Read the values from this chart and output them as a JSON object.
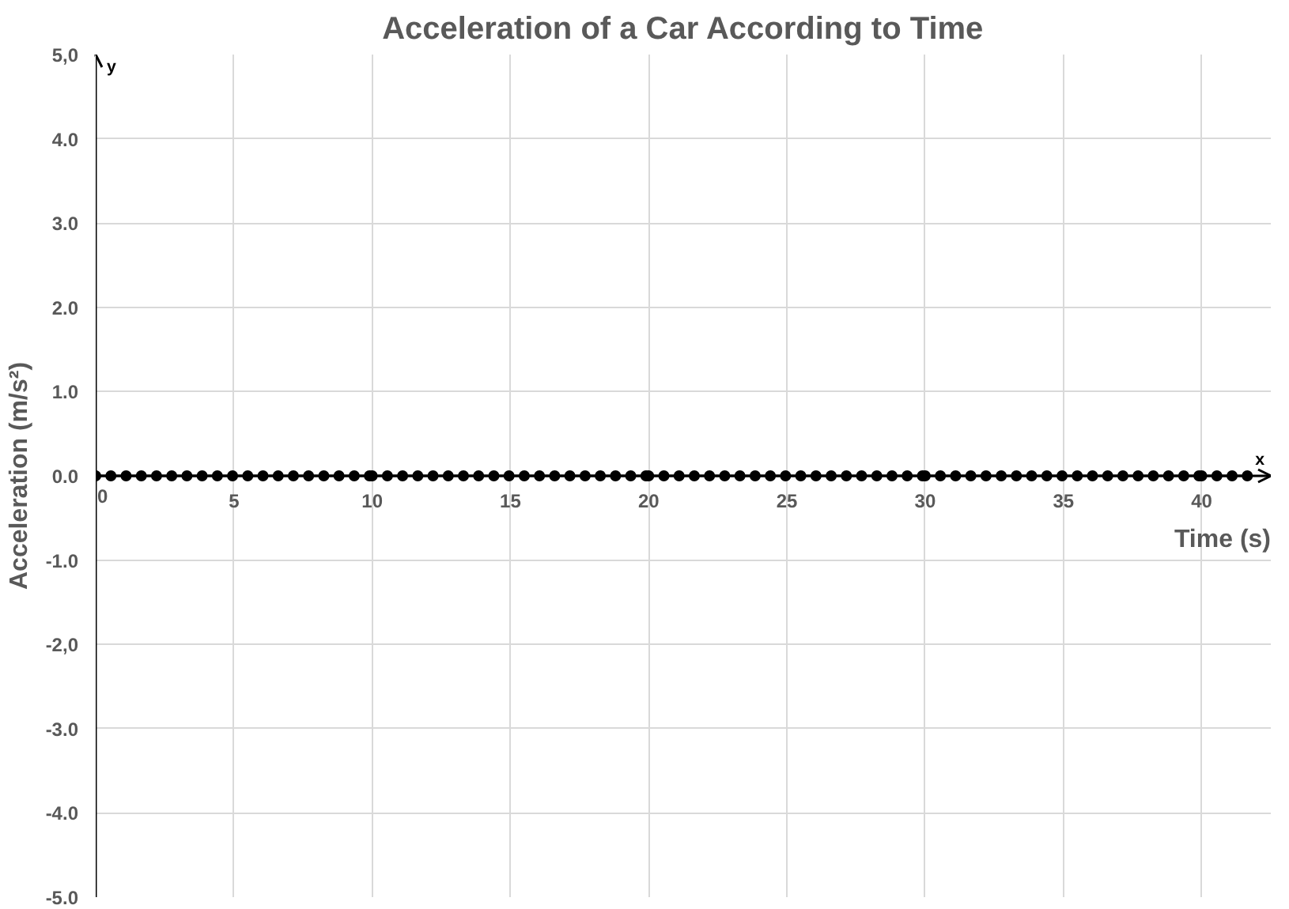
{
  "chart_data": {
    "type": "line",
    "title": "Acceleration of a Car According to Time",
    "xlabel": "Time (s)",
    "ylabel": "Acceleration (m/s²)",
    "annotations": [
      "y",
      "x"
    ],
    "series": [
      {
        "color": "#000000",
        "x": [
          0,
          0.55,
          1.1,
          1.65,
          2.2,
          2.75,
          3.3,
          3.85,
          4.4,
          4.95,
          5.5,
          6.05,
          6.6,
          7.15,
          7.7,
          8.25,
          8.8,
          9.35,
          9.9,
          10,
          10.55,
          11.1,
          11.65,
          12.2,
          12.75,
          13.3,
          13.85,
          14.4,
          14.95,
          15.5,
          16.05,
          16.6,
          17.15,
          17.7,
          18.25,
          18.8,
          19.35,
          19.9,
          20,
          20.55,
          21.1,
          21.65,
          22.2,
          22.75,
          23.3,
          23.85,
          24.4,
          24.95,
          25.5,
          26.05,
          26.6,
          27.15,
          27.7,
          28.25,
          28.8,
          29.35,
          29.9,
          30,
          30.55,
          31.1,
          31.65,
          32.2,
          32.75,
          33.3,
          33.85,
          34.4,
          34.95,
          35.5,
          36.05,
          36.6,
          37.15,
          37.7,
          38.25,
          38.8,
          39.35,
          39.9,
          40,
          40.55,
          41.1,
          41.65
        ],
        "values": [
          0,
          0,
          0,
          0,
          0,
          0,
          0,
          0,
          0,
          0,
          0,
          0,
          0,
          0,
          0,
          0,
          0,
          0,
          0,
          0,
          0,
          0,
          0,
          0,
          0,
          0,
          0,
          0,
          0,
          0,
          0,
          0,
          0,
          0,
          0,
          0,
          0,
          0,
          0,
          0,
          0,
          0,
          0,
          0,
          0,
          0,
          0,
          0,
          0,
          0,
          0,
          0,
          0,
          0,
          0,
          0,
          0,
          0,
          0,
          0,
          0,
          0,
          0,
          0,
          0,
          0,
          0,
          0,
          0,
          0,
          0,
          0,
          0,
          0,
          0,
          0,
          0,
          0,
          0,
          0
        ]
      }
    ],
    "marker": "circle",
    "line_style": "solid",
    "grid": true,
    "xlim": [
      0,
      42.5
    ],
    "xticks": [
      0,
      5,
      10,
      15,
      20,
      25,
      30,
      35,
      40
    ],
    "ylim": [
      -5,
      5
    ],
    "yticks": [
      {
        "value": 5,
        "label": "5,0"
      },
      {
        "value": 4,
        "label": "4.0"
      },
      {
        "value": 3,
        "label": "3.0"
      },
      {
        "value": 2,
        "label": "2.0"
      },
      {
        "value": 1,
        "label": "1.0"
      },
      {
        "value": 0,
        "label": "0.0"
      },
      {
        "value": -1,
        "label": "-1.0"
      },
      {
        "value": -2,
        "label": "-2,0"
      },
      {
        "value": -3,
        "label": "-3.0"
      },
      {
        "value": -4,
        "label": "-4.0"
      },
      {
        "value": -5,
        "label": "-5.0"
      }
    ]
  }
}
